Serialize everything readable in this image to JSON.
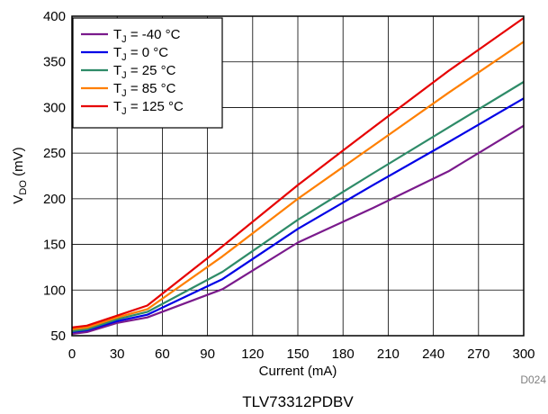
{
  "chart_data": {
    "type": "line",
    "title": "",
    "xlabel": "Current (mA)",
    "ylabel_main": "V",
    "ylabel_sub": "DO",
    "ylabel_unit": " (mV)",
    "xlim": [
      0,
      300
    ],
    "ylim": [
      50,
      400
    ],
    "xticks": [
      "0",
      "30",
      "60",
      "90",
      "120",
      "150",
      "180",
      "210",
      "240",
      "270",
      "300"
    ],
    "yticks": [
      "50",
      "100",
      "150",
      "200",
      "250",
      "300",
      "350",
      "400"
    ],
    "grid": true,
    "legend_position": "top-left",
    "series": [
      {
        "name_main": "T",
        "name_sub": "J",
        "name_rest": " = -40 °C",
        "color": "#7a1a8c",
        "x": [
          0,
          10,
          30,
          50,
          100,
          150,
          200,
          250,
          300
        ],
        "y": [
          52,
          54,
          64,
          70,
          101,
          152,
          190,
          230,
          280
        ]
      },
      {
        "name_main": "T",
        "name_sub": "J",
        "name_rest": " = 0 °C",
        "color": "#0000e6",
        "x": [
          0,
          10,
          30,
          50,
          100,
          150,
          200,
          250,
          300
        ],
        "y": [
          54,
          56,
          66,
          73,
          112,
          167,
          215,
          262,
          310
        ]
      },
      {
        "name_main": "T",
        "name_sub": "J",
        "name_rest": " = 25 °C",
        "color": "#2e8b68",
        "x": [
          0,
          10,
          30,
          50,
          100,
          150,
          200,
          250,
          300
        ],
        "y": [
          55,
          57,
          68,
          76,
          120,
          177,
          228,
          278,
          328
        ]
      },
      {
        "name_main": "T",
        "name_sub": "J",
        "name_rest": " = 85 °C",
        "color": "#ff7f00",
        "x": [
          0,
          10,
          30,
          50,
          100,
          150,
          200,
          250,
          300
        ],
        "y": [
          57,
          59,
          70,
          79,
          137,
          200,
          258,
          316,
          372
        ]
      },
      {
        "name_main": "T",
        "name_sub": "J",
        "name_rest": " = 125 °C",
        "color": "#e60000",
        "x": [
          0,
          10,
          30,
          50,
          100,
          150,
          200,
          250,
          300
        ],
        "y": [
          59,
          61,
          72,
          83,
          148,
          215,
          278,
          340,
          398
        ]
      }
    ],
    "figure_code": "D024",
    "caption": "TLV73312PDBV"
  }
}
